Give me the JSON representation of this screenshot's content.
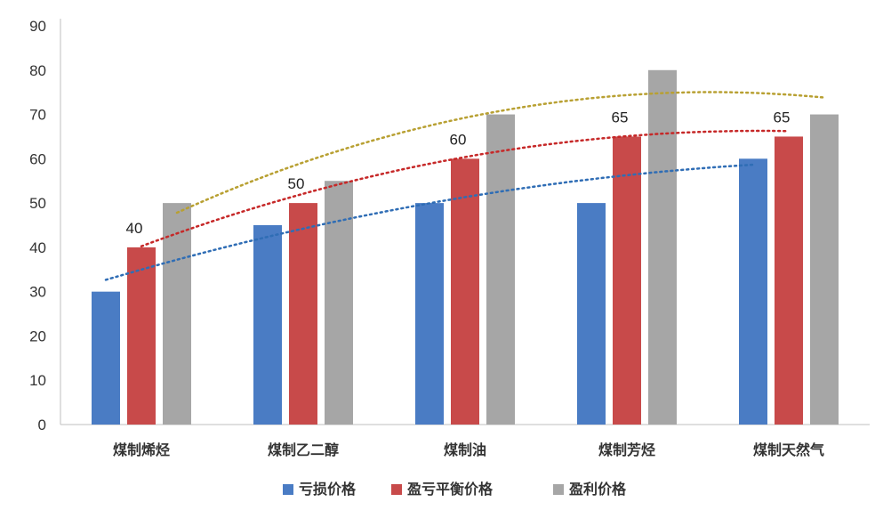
{
  "chart_data": {
    "type": "bar",
    "categories": [
      "煤制烯烃",
      "煤制乙二醇",
      "煤制油",
      "煤制芳烃",
      "煤制天然气"
    ],
    "series": [
      {
        "name": "亏损价格",
        "color": "#4a7cc4",
        "trend_color": "#2f6db5",
        "values": [
          30,
          45,
          50,
          50,
          60
        ]
      },
      {
        "name": "盈亏平衡价格",
        "color": "#c84a4a",
        "trend_color": "#c62828",
        "values": [
          40,
          50,
          60,
          65,
          65
        ]
      },
      {
        "name": "盈利价格",
        "color": "#a6a6a6",
        "trend_color": "#b8a032",
        "values": [
          50,
          55,
          70,
          80,
          70
        ]
      }
    ],
    "data_labels": {
      "series_index": 1,
      "labels": [
        "40",
        "50",
        "60",
        "65",
        "65"
      ]
    },
    "yticks": [
      "0",
      "10",
      "20",
      "30",
      "40",
      "50",
      "60",
      "70",
      "80",
      "90"
    ],
    "ylim": [
      0,
      90
    ],
    "trendlines": "dotted polynomial per series",
    "grid": false,
    "legend_position": "bottom"
  }
}
